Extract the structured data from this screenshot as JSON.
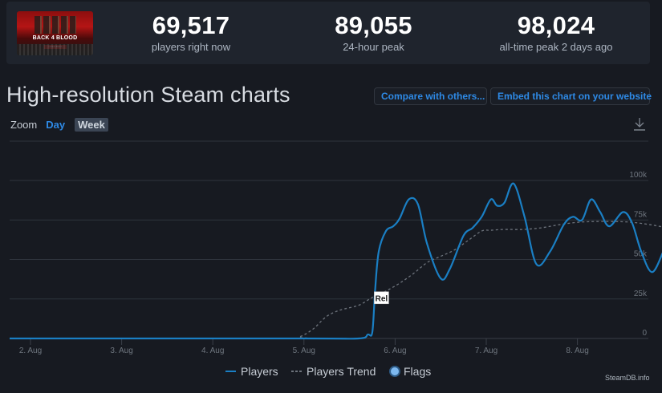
{
  "game": {
    "thumbnail_icon": "back-4-blood-open-beta-thumbnail",
    "thumbnail_logo": "BACK 4 BLOOD",
    "thumbnail_badge": "OPEN BETA"
  },
  "stats": [
    {
      "value": "69,517",
      "label": "players right now"
    },
    {
      "value": "89,055",
      "label": "24-hour peak"
    },
    {
      "value": "98,024",
      "label": "all-time peak 2 days ago"
    }
  ],
  "header": {
    "title": "High-resolution Steam charts",
    "compare_button": "Compare with others...",
    "embed_button": "Embed this chart on your website"
  },
  "zoom": {
    "label": "Zoom",
    "options": [
      "Day",
      "Week"
    ],
    "selected": "Week",
    "highlighted": "Day"
  },
  "toolbar": {
    "download_icon": "download-icon"
  },
  "legend": [
    {
      "label": "Players",
      "style": "solid",
      "color": "#1a7fc4"
    },
    {
      "label": "Players Trend",
      "style": "dashed",
      "color": "#6d737c"
    },
    {
      "label": "Flags",
      "style": "dot",
      "color": "#7db8ef"
    }
  ],
  "credit": "SteamDB.info",
  "colors": {
    "background": "#171a21",
    "panel": "#1f242d",
    "accent": "#2e8ae6",
    "players_line": "#1a7fc4",
    "trend_line": "#6d737c",
    "grid": "#2f343d"
  },
  "chart_data": {
    "type": "line",
    "title": "High-resolution Steam charts",
    "xlabel": "",
    "ylabel": "",
    "x_ticks": [
      "2. Aug",
      "3. Aug",
      "4. Aug",
      "5. Aug",
      "6. Aug",
      "7. Aug",
      "8. Aug"
    ],
    "y_ticks": [
      "0",
      "25k",
      "50k",
      "75k",
      "100k"
    ],
    "ylim": [
      0,
      100000
    ],
    "grid": true,
    "legend_position": "bottom",
    "x_unit": "days since 2. Aug 00:00",
    "series": [
      {
        "name": "Players",
        "x": [
          0.0,
          3.0,
          3.6,
          3.7,
          3.75,
          3.78,
          3.82,
          3.9,
          3.98,
          4.05,
          4.15,
          4.25,
          4.35,
          4.5,
          4.6,
          4.75,
          4.85,
          4.95,
          5.05,
          5.12,
          5.2,
          5.3,
          5.42,
          5.55,
          5.7,
          5.85,
          5.95,
          6.05,
          6.15,
          6.25,
          6.35,
          6.5,
          6.6,
          6.7,
          6.82,
          6.95,
          7.05,
          7.2,
          7.35,
          7.45,
          7.55,
          7.65,
          7.75,
          7.85,
          7.95
        ],
        "values": [
          0,
          0,
          0,
          2500,
          4000,
          30000,
          55000,
          68000,
          71000,
          76000,
          88000,
          85000,
          60000,
          38000,
          44000,
          65000,
          70000,
          77000,
          88000,
          84000,
          86000,
          98000,
          77000,
          47000,
          55000,
          72000,
          77000,
          75000,
          88000,
          80000,
          71000,
          80000,
          73000,
          55000,
          42000,
          56000,
          68000,
          72000,
          70000,
          65000,
          67000,
          68000,
          66000,
          70000,
          69500
        ]
      },
      {
        "name": "Players Trend",
        "x": [
          0.0,
          2.8,
          2.95,
          3.1,
          3.25,
          3.4,
          3.6,
          3.75,
          3.9,
          4.05,
          4.2,
          4.35,
          4.5,
          4.65,
          4.8,
          4.95,
          5.05,
          5.2,
          5.4,
          5.6,
          5.8,
          6.0,
          6.2,
          6.4,
          6.6,
          6.8,
          7.0,
          7.2,
          7.4,
          7.6,
          7.8,
          7.95
        ],
        "values": [
          0,
          0,
          1000,
          6000,
          14000,
          18000,
          21000,
          26000,
          30000,
          35000,
          41000,
          48000,
          52000,
          56000,
          62000,
          68000,
          68500,
          69000,
          69000,
          70000,
          72000,
          73500,
          74000,
          74000,
          73500,
          72000,
          70000,
          69000,
          68500,
          68000,
          67500,
          66000
        ]
      }
    ],
    "annotations": [
      {
        "label": "Rel",
        "x": 3.78,
        "y": 25000,
        "type": "flag"
      }
    ]
  }
}
